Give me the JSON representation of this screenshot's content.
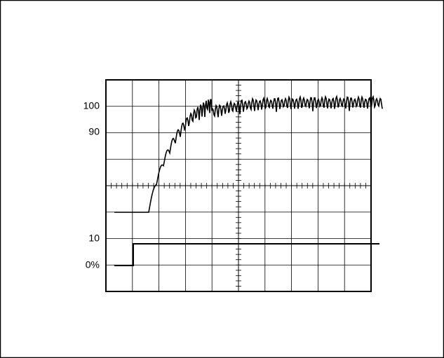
{
  "scale_labels": [
    "100",
    "90",
    "10",
    "0%"
  ]
}
